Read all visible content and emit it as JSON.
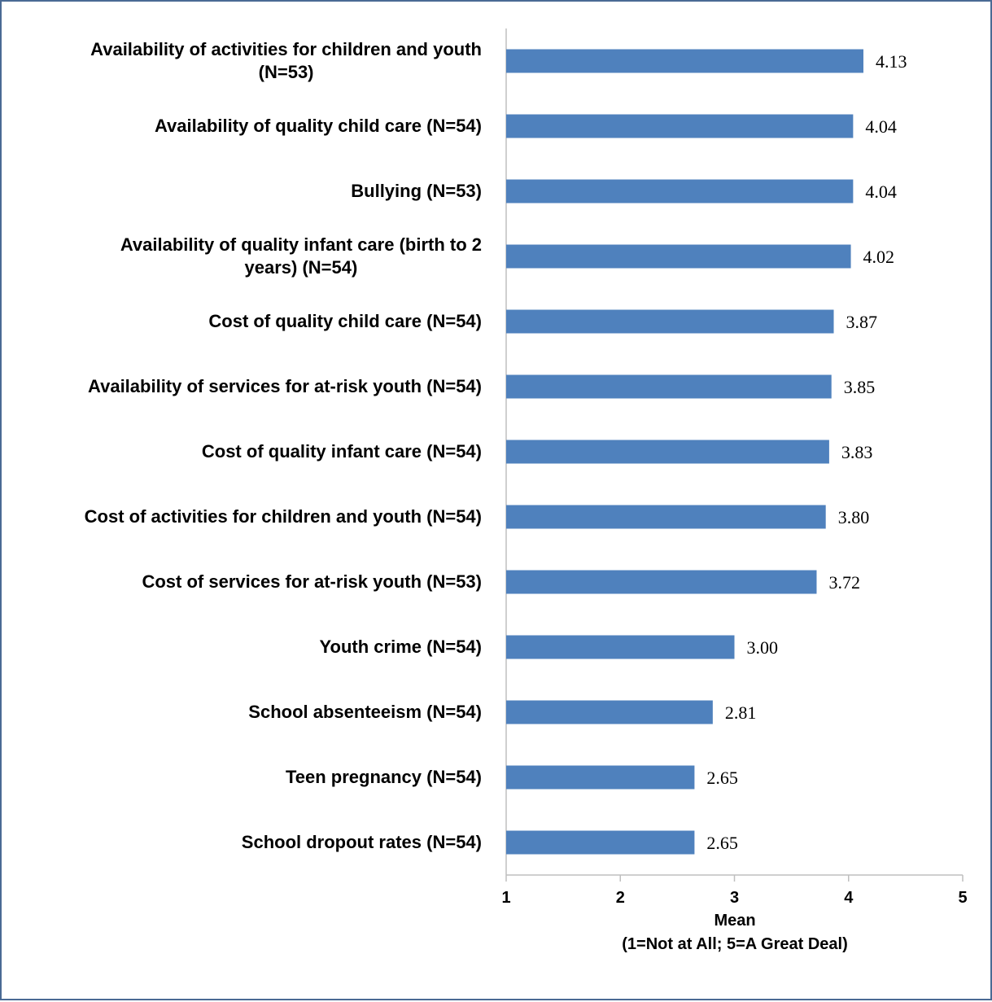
{
  "chart_data": {
    "type": "bar",
    "orientation": "horizontal",
    "categories": [
      [
        "Availability of activities for children and youth",
        "(N=53)"
      ],
      [
        "Availability of quality child care (N=54)"
      ],
      [
        "Bullying (N=53)"
      ],
      [
        "Availability of quality infant care (birth to 2",
        "years) (N=54)"
      ],
      [
        "Cost of quality child care (N=54)"
      ],
      [
        "Availability of services for at-risk youth (N=54)"
      ],
      [
        "Cost of quality infant care (N=54)"
      ],
      [
        "Cost of activities for children and youth (N=54)"
      ],
      [
        "Cost of services for at-risk youth (N=53)"
      ],
      [
        "Youth crime (N=54)"
      ],
      [
        "School absenteeism (N=54)"
      ],
      [
        "Teen pregnancy (N=54)"
      ],
      [
        "School dropout rates (N=54)"
      ]
    ],
    "values": [
      4.13,
      4.04,
      4.04,
      4.02,
      3.87,
      3.85,
      3.83,
      3.8,
      3.72,
      3.0,
      2.81,
      2.65,
      2.65
    ],
    "value_labels": [
      "4.13",
      "4.04",
      "4.04",
      "4.02",
      "3.87",
      "3.85",
      "3.83",
      "3.80",
      "3.72",
      "3.00",
      "2.81",
      "2.65",
      "2.65"
    ],
    "xlim": [
      1,
      5
    ],
    "xticks": [
      "1",
      "2",
      "3",
      "4",
      "5"
    ],
    "xlabel": [
      "Mean",
      "(1=Not at All; 5=A Great Deal)"
    ],
    "ylabel": "",
    "title": "",
    "grid": false,
    "bar_color": "#4f81bd",
    "axis_color": "#bfbfbf",
    "border_color": "#4a6a94"
  }
}
